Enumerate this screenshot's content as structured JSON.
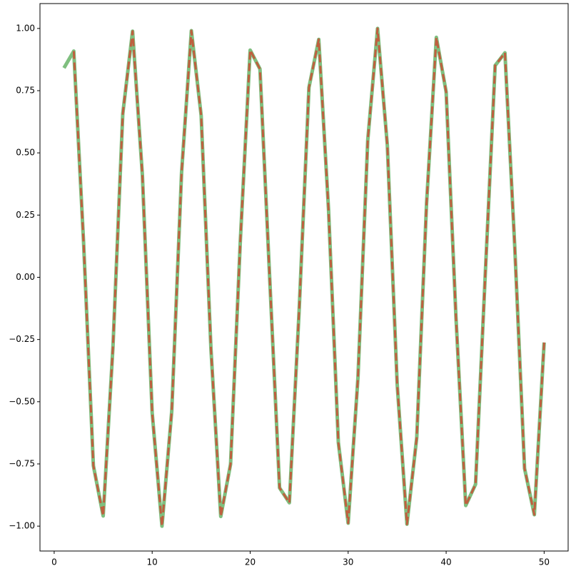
{
  "chart_data": {
    "type": "line",
    "series": [
      {
        "color": "#008000",
        "dashed": false,
        "x": [
          1,
          2,
          3,
          4,
          5,
          6,
          7,
          8,
          9,
          10,
          11,
          12,
          13,
          14,
          15,
          16,
          17,
          18,
          19,
          20,
          21,
          22,
          23,
          24,
          25,
          26,
          27,
          28,
          29,
          30,
          31,
          32,
          33,
          34,
          35,
          36,
          37,
          38,
          39,
          40,
          41,
          42,
          43,
          44,
          45,
          46,
          47,
          48,
          49,
          50
        ],
        "values": [
          0.841,
          0.909,
          0.141,
          -0.757,
          -0.959,
          -0.279,
          0.657,
          0.989,
          0.412,
          -0.544,
          -1.0,
          -0.537,
          0.42,
          0.991,
          0.65,
          -0.288,
          -0.961,
          -0.751,
          0.15,
          0.913,
          0.837,
          -0.009,
          -0.846,
          -0.906,
          -0.132,
          0.763,
          0.956,
          0.271,
          -0.664,
          -0.988,
          -0.404,
          0.551,
          1.0,
          0.529,
          -0.428,
          -0.992,
          -0.644,
          0.296,
          0.964,
          0.745,
          -0.159,
          -0.917,
          -0.832,
          0.018,
          0.851,
          0.902,
          0.124,
          -0.768,
          -0.954,
          -0.262
        ]
      },
      {
        "color": "#ff0000",
        "dashed": true,
        "x": [
          2,
          3,
          4,
          5,
          6,
          7,
          8,
          9,
          10,
          11,
          12,
          13,
          14,
          15,
          16,
          17,
          18,
          19,
          20,
          21,
          22,
          23,
          24,
          25,
          26,
          27,
          28,
          29,
          30,
          31,
          32,
          33,
          34,
          35,
          36,
          37,
          38,
          39,
          40,
          41,
          42,
          43,
          44,
          45,
          46,
          47,
          48,
          49,
          50
        ],
        "values": [
          0.909,
          0.141,
          -0.757,
          -0.959,
          -0.279,
          0.657,
          0.989,
          0.412,
          -0.544,
          -1.0,
          -0.537,
          0.42,
          0.991,
          0.65,
          -0.288,
          -0.961,
          -0.751,
          0.15,
          0.913,
          0.837,
          -0.009,
          -0.846,
          -0.906,
          -0.132,
          0.763,
          0.956,
          0.271,
          -0.664,
          -0.988,
          -0.404,
          0.551,
          1.0,
          0.529,
          -0.428,
          -0.992,
          -0.644,
          0.296,
          0.964,
          0.745,
          -0.159,
          -0.917,
          -0.832,
          0.018,
          0.851,
          0.902,
          0.124,
          -0.768,
          -0.954,
          -0.262
        ]
      }
    ],
    "xlim": [
      -1.45,
      52.45
    ],
    "xticks": [
      0,
      10,
      20,
      30,
      40,
      50
    ],
    "ylim": [
      -1.1,
      1.1
    ],
    "yticks": [
      {
        "value": -1,
        "label": "−1.00"
      },
      {
        "value": -0.75,
        "label": "−0.75"
      },
      {
        "value": -0.5,
        "label": "−0.50"
      },
      {
        "value": -0.25,
        "label": "−0.25"
      },
      {
        "value": 0,
        "label": "0.00"
      },
      {
        "value": 0.25,
        "label": "0.25"
      },
      {
        "value": 0.5,
        "label": "0.50"
      },
      {
        "value": 0.75,
        "label": "0.75"
      },
      {
        "value": 1,
        "label": "1.00"
      }
    ]
  }
}
